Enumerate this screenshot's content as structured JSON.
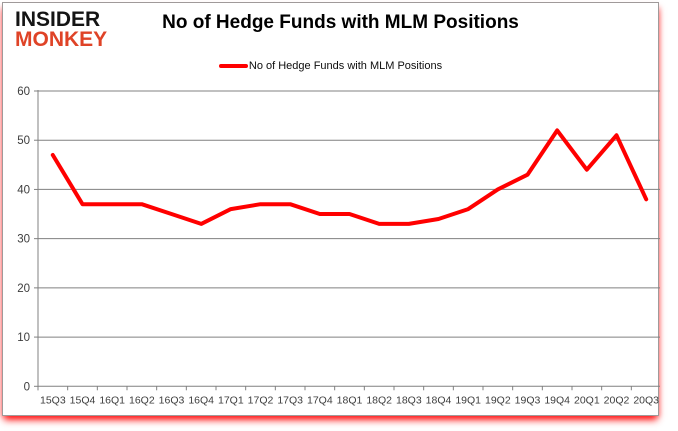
{
  "logo": {
    "line1": "INSIDER",
    "line2": "MONKEY"
  },
  "header": {
    "title": "No of Hedge Funds with MLM Positions"
  },
  "legend": {
    "label": "No of Hedge Funds with MLM Positions",
    "swatch_color": "#ff0000"
  },
  "chart_data": {
    "type": "line",
    "title": "No of Hedge Funds with MLM Positions",
    "categories": [
      "15Q3",
      "15Q4",
      "16Q1",
      "16Q2",
      "16Q3",
      "16Q4",
      "17Q1",
      "17Q2",
      "17Q3",
      "17Q4",
      "18Q1",
      "18Q2",
      "18Q3",
      "18Q4",
      "19Q1",
      "19Q2",
      "19Q3",
      "19Q4",
      "20Q1",
      "20Q2",
      "20Q3"
    ],
    "series": [
      {
        "name": "No of Hedge Funds with MLM Positions",
        "color": "#ff0000",
        "values": [
          47,
          37,
          37,
          37,
          35,
          33,
          36,
          37,
          37,
          35,
          35,
          33,
          33,
          34,
          36,
          40,
          43,
          52,
          44,
          51,
          38
        ]
      }
    ],
    "ylim": [
      0,
      60
    ],
    "yticks": [
      0,
      10,
      20,
      30,
      40,
      50,
      60
    ],
    "grid": true,
    "legend_position": "top-center",
    "grid_color": "#808080",
    "axis_color": "#808080",
    "tick_label_color": "#3d3d3d"
  },
  "colors": {
    "logo_top": "#141414",
    "logo_bottom": "#df4327",
    "line_red": "#ff0000",
    "bottom_glow": "#ff1a1a"
  }
}
